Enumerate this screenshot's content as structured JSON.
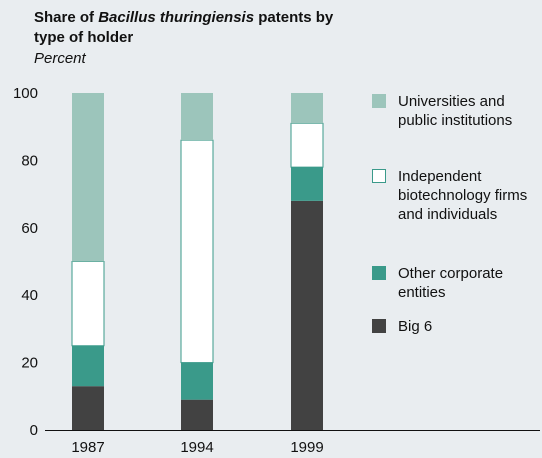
{
  "chart_data": {
    "type": "stacked_bar",
    "title": [
      "Share of ",
      "Bacillus thuringiensis",
      " patents by type of holder"
    ],
    "subtitle": "Percent",
    "categories": [
      "1987",
      "1994",
      "1999"
    ],
    "series": [
      {
        "name": "Big 6",
        "color": "#424242",
        "values": [
          13,
          9,
          68
        ]
      },
      {
        "name": "Other corporate entities",
        "color": "#3a9a8a",
        "values": [
          12,
          11,
          10
        ]
      },
      {
        "name": "Independent biotechnology firms and individuals",
        "color": "#ffffff",
        "values": [
          25,
          66,
          13
        ]
      },
      {
        "name": "Universities and public institutions",
        "color": "#9cc5bb",
        "values": [
          50,
          14,
          9
        ]
      }
    ],
    "ylim": [
      0,
      100
    ],
    "yticks": [
      0,
      20,
      40,
      60,
      80,
      100
    ],
    "grid": false
  }
}
